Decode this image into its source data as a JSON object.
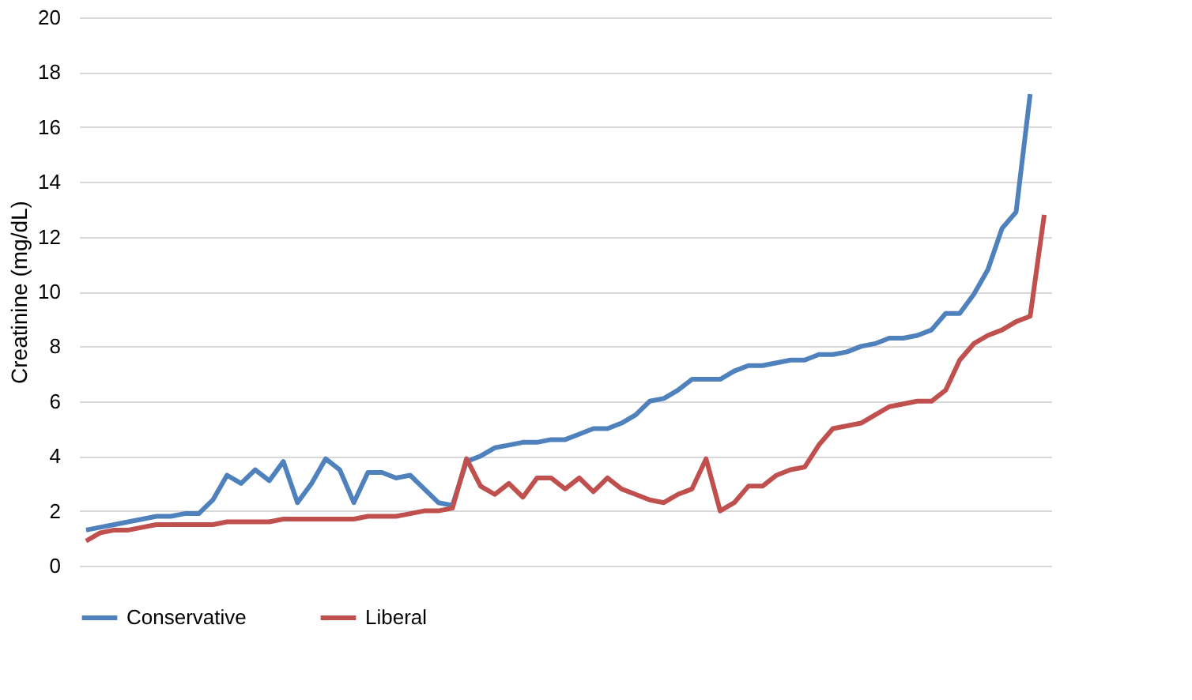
{
  "chart_data": {
    "type": "line",
    "ylabel": "Creatinine  (mg/dL)",
    "categories": [
      null,
      null,
      null,
      null,
      null,
      null,
      null,
      null,
      null,
      null,
      null,
      null,
      null,
      null,
      null,
      null,
      null,
      null,
      null,
      null,
      null,
      null,
      null,
      null,
      null,
      null,
      null,
      null,
      null,
      null,
      null,
      null,
      null,
      null,
      null,
      null,
      null,
      null,
      null,
      null,
      null,
      null,
      null,
      null,
      null,
      null,
      null,
      null,
      null,
      null,
      null,
      null,
      null,
      null,
      null,
      null,
      null,
      null,
      null,
      null,
      null,
      null,
      null,
      null,
      null,
      null,
      null,
      null,
      null
    ],
    "series": [
      {
        "name": "Conservative",
        "color": "#4f81bd",
        "values": [
          1.3,
          1.4,
          1.5,
          1.6,
          1.7,
          1.8,
          1.8,
          1.9,
          1.9,
          2.4,
          3.3,
          3.0,
          3.5,
          3.1,
          3.8,
          2.3,
          3.0,
          3.9,
          3.5,
          2.3,
          3.4,
          3.4,
          3.2,
          3.3,
          2.8,
          2.3,
          2.2,
          3.8,
          4.0,
          4.3,
          4.4,
          4.5,
          4.5,
          4.6,
          4.6,
          4.8,
          5.0,
          5.0,
          5.2,
          5.5,
          6.0,
          6.1,
          6.4,
          6.8,
          6.8,
          6.8,
          7.1,
          7.3,
          7.3,
          7.4,
          7.5,
          7.5,
          7.7,
          7.7,
          7.8,
          8.0,
          8.1,
          8.3,
          8.3,
          8.4,
          8.6,
          9.2,
          9.2,
          9.9,
          10.8,
          12.3,
          12.9,
          17.2,
          null
        ]
      },
      {
        "name": "Liberal",
        "color": "#c0504d",
        "values": [
          0.9,
          1.2,
          1.3,
          1.3,
          1.4,
          1.5,
          1.5,
          1.5,
          1.5,
          1.5,
          1.6,
          1.6,
          1.6,
          1.6,
          1.7,
          1.7,
          1.7,
          1.7,
          1.7,
          1.7,
          1.8,
          1.8,
          1.8,
          1.9,
          2.0,
          2.0,
          2.1,
          3.9,
          2.9,
          2.6,
          3.0,
          2.5,
          3.2,
          3.2,
          2.8,
          3.2,
          2.7,
          3.2,
          2.8,
          2.6,
          2.4,
          2.3,
          2.6,
          2.8,
          3.9,
          2.0,
          2.3,
          2.9,
          2.9,
          3.3,
          3.5,
          3.6,
          4.4,
          5.0,
          5.1,
          5.2,
          5.5,
          5.8,
          5.9,
          6.0,
          6.0,
          6.4,
          7.5,
          8.1,
          8.4,
          8.6,
          8.9,
          9.1,
          12.8
        ]
      }
    ],
    "ylim": [
      0,
      20
    ],
    "yticks": [
      0,
      2,
      4,
      6,
      8,
      10,
      12,
      14,
      16,
      18,
      20
    ],
    "grid": "y",
    "legend": "bottom",
    "tick_labels": "y",
    "marker": "none",
    "line_style": "solid"
  }
}
